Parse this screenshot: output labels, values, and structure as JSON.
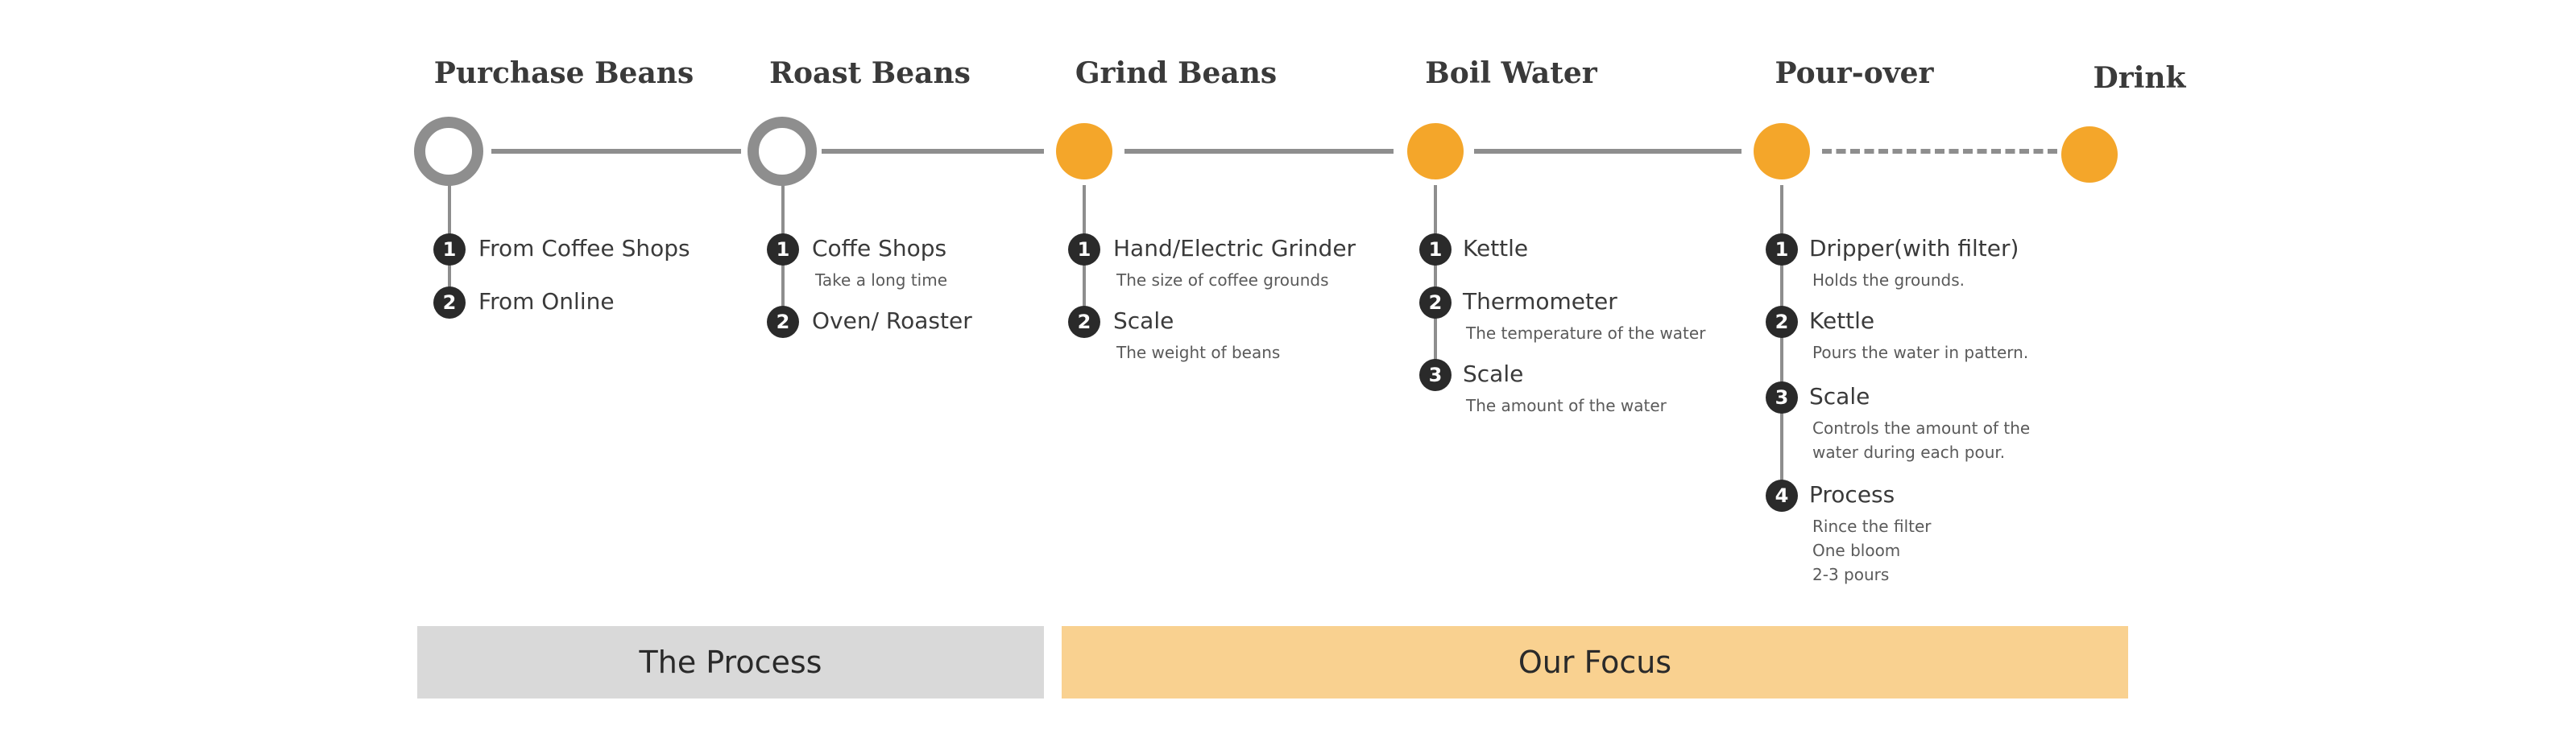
{
  "stages": [
    {
      "title": "Purchase Beans",
      "type": "ring"
    },
    {
      "title": "Roast Beans",
      "type": "ring"
    },
    {
      "title": "Grind Beans",
      "type": "filled"
    },
    {
      "title": "Boil Water",
      "type": "filled"
    },
    {
      "title": "Pour-over",
      "type": "filled"
    },
    {
      "title": "Drink",
      "type": "filled"
    }
  ],
  "steps": {
    "purchase": [
      {
        "num": "1",
        "label": "From Coffee Shops"
      },
      {
        "num": "2",
        "label": "From Online"
      }
    ],
    "roast": [
      {
        "num": "1",
        "label": "Coffe Shops",
        "desc": "Take a long time"
      },
      {
        "num": "2",
        "label": "Oven/ Roaster"
      }
    ],
    "grind": [
      {
        "num": "1",
        "label": "Hand/Electric Grinder",
        "desc": "The size of coffee grounds"
      },
      {
        "num": "2",
        "label": "Scale",
        "desc": "The weight of beans"
      }
    ],
    "boil": [
      {
        "num": "1",
        "label": "Kettle"
      },
      {
        "num": "2",
        "label": "Thermometer",
        "desc": "The temperature of the water"
      },
      {
        "num": "3",
        "label": "Scale",
        "desc": "The amount of the water"
      }
    ],
    "pour": [
      {
        "num": "1",
        "label": "Dripper(with filter)",
        "desc": "Holds the grounds."
      },
      {
        "num": "2",
        "label": "Kettle",
        "desc": "Pours the water in pattern."
      },
      {
        "num": "3",
        "label": "Scale",
        "desc_lines": [
          "Controls the amount of the",
          "water during each pour."
        ]
      },
      {
        "num": "4",
        "label": "Process",
        "desc_lines": [
          "Rince the filter",
          "One bloom",
          "2-3 pours"
        ]
      }
    ]
  },
  "bands": {
    "process": "The Process",
    "focus": "Our Focus"
  },
  "colors": {
    "accent": "#f4a62a",
    "line": "#8e8e8e",
    "badge": "#2a2a2a",
    "band_process": "#d9d9d9",
    "band_focus": "#f9d190"
  }
}
